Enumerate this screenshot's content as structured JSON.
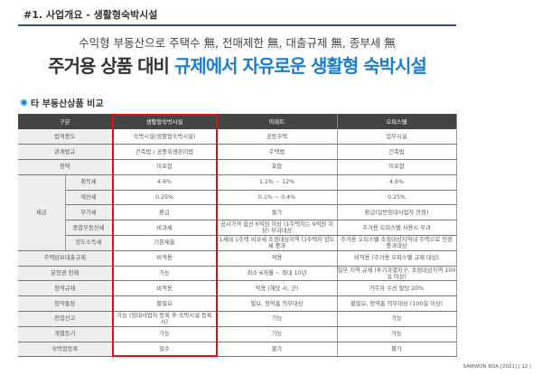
{
  "header": {
    "title": "#1. 사업개요 - 생활형숙박시설"
  },
  "subtitle": "수익형 부동산으로 주택수 無, 전매제한 無, 대출규제 無, 종부세 無",
  "headline": {
    "part1": "주거용 상품 대비 ",
    "part2": "규제에서 자유로운 생활형 숙박시설"
  },
  "section": {
    "icon": "location-pin-icon",
    "title": "타 부동산상품 비교"
  },
  "table": {
    "headers": [
      "구분",
      "생활형숙박시설",
      "아파트",
      "오피스텔"
    ],
    "rows": [
      {
        "label": "법적용도",
        "cells": [
          "숙박시설(생활형숙박시설)",
          "공동주택",
          "업무시설"
        ]
      },
      {
        "label": "관계법규",
        "cells": [
          "건축법 / 공중위생관리법",
          "주택법",
          "건축법"
        ]
      },
      {
        "label": "청약",
        "cells": [
          "미포함",
          "포함",
          "미포함"
        ]
      },
      {
        "group": "세금",
        "label": "취득세",
        "cells": [
          "4.6%",
          "1.1% ~ 12%",
          "4.6%"
        ]
      },
      {
        "label": "재산세",
        "cells": [
          "0.25%",
          "0.1% ~ 0.4%",
          "0.25%"
        ]
      },
      {
        "label": "부가세",
        "cells": [
          "환급",
          "불가",
          "환급(일반임대사업자 한정)"
        ]
      },
      {
        "label": "종합부동산세",
        "cells": [
          "비과세",
          "공시가격 합산 6억원 이상 (1주택자는 9억원 이상) 부과대상",
          "주거용 오피스텔 사용시 부과"
        ]
      },
      {
        "label": "양도소득세",
        "cells": [
          "기본세율",
          "1세대 1주택 비과세 조정대상지역 다주택자 양도세 중과",
          "주거용 오피스텔 조정대상지역내 주택으로 인정 중과대상"
        ]
      },
      {
        "label": "주택담보대출규제",
        "cells": [
          "비적용",
          "적용",
          "비적용 (주거용 오피스텔 규제 대상)"
        ]
      },
      {
        "label": "분양권 전매",
        "cells": [
          "가능",
          "최소 6개월 ~ 최대 10년",
          "일부 지역 규제 (투기과열지구, 조정대상지역 100실 이상)"
        ]
      },
      {
        "label": "청약규제",
        "cells": [
          "비적용",
          "적용 (해당 시, 군)",
          "거주자 우선 할당 20%"
        ]
      },
      {
        "label": "청약통장",
        "cells": [
          "불필요",
          "필요, 청약홈 의무대상",
          "불필요, 청약홈 의무대상 (100실 이상)"
        ]
      },
      {
        "label": "전입신고",
        "cells": [
          "가능 (임대사업자 등록 후 숙박시설 등록 시)",
          "가능",
          "가능"
        ]
      },
      {
        "label": "개별등기",
        "cells": [
          "가능",
          "가능",
          "가능"
        ]
      },
      {
        "label": "숙박업등록",
        "cells": [
          "필수",
          "불가",
          "불가"
        ]
      }
    ]
  },
  "footer": {
    "text": "SAMWON RDA [2021]  | 12 |"
  },
  "colors": {
    "accent": "#1a7fd0",
    "highlight_border": "#e01010",
    "header_bg": "#444444"
  }
}
